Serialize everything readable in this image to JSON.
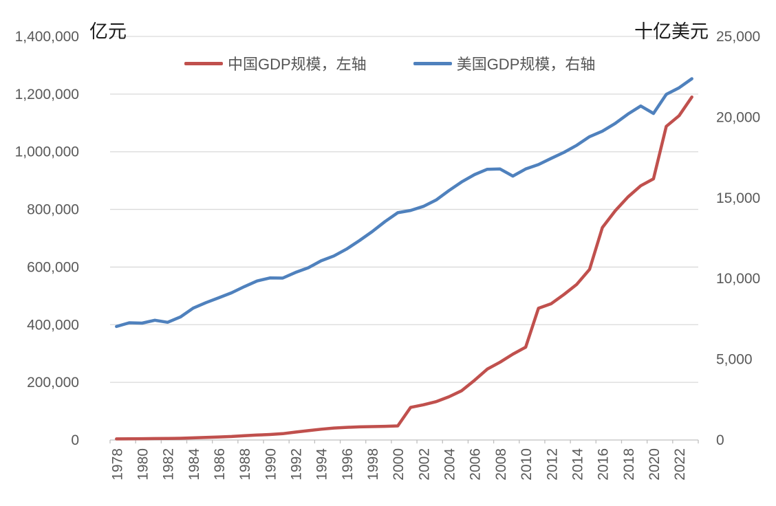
{
  "chart_data": {
    "type": "line",
    "title": "",
    "x": [
      1978,
      1979,
      1980,
      1981,
      1982,
      1983,
      1984,
      1985,
      1986,
      1987,
      1988,
      1989,
      1990,
      1991,
      1992,
      1993,
      1994,
      1995,
      1996,
      1997,
      1998,
      1999,
      2000,
      2001,
      2002,
      2003,
      2004,
      2005,
      2006,
      2007,
      2008,
      2009,
      2010,
      2011,
      2012,
      2013,
      2014,
      2015,
      2016,
      2017,
      2018,
      2019,
      2020,
      2021,
      2022,
      2023
    ],
    "series": [
      {
        "name": "中国GDP规模，左轴",
        "axis": "left",
        "color": "#C0504D",
        "values": [
          3700,
          4100,
          4600,
          4900,
          5400,
          6000,
          7300,
          9100,
          10400,
          12100,
          15100,
          17100,
          19000,
          22000,
          27500,
          32500,
          37500,
          41500,
          44000,
          45500,
          46500,
          47500,
          49000,
          113000,
          122000,
          133000,
          150000,
          171000,
          207000,
          246000,
          270000,
          298000,
          322000,
          457000,
          473000,
          505000,
          540000,
          592000,
          737000,
          795000,
          843000,
          882000,
          906000,
          1088000,
          1125000,
          1190000
        ]
      },
      {
        "name": "美国GDP规模，右轴",
        "axis": "right",
        "color": "#4F81BD",
        "values": [
          7030,
          7260,
          7240,
          7420,
          7290,
          7620,
          8170,
          8510,
          8810,
          9120,
          9500,
          9850,
          10040,
          10030,
          10380,
          10670,
          11100,
          11400,
          11830,
          12350,
          12910,
          13530,
          14080,
          14220,
          14470,
          14870,
          15450,
          15990,
          16440,
          16770,
          16790,
          16350,
          16790,
          17060,
          17450,
          17820,
          18260,
          18790,
          19130,
          19610,
          20190,
          20690,
          20230,
          21410,
          21820,
          22380
        ]
      }
    ],
    "left_axis": {
      "title": "亿元",
      "min": 0,
      "max": 1400000,
      "tick_step": 200000,
      "tick_labels": [
        "0",
        "200,000",
        "400,000",
        "600,000",
        "800,000",
        "1,000,000",
        "1,200,000",
        "1,400,000"
      ]
    },
    "right_axis": {
      "title": "十亿美元",
      "min": 0,
      "max": 25000,
      "tick_step": 5000,
      "tick_labels": [
        "0",
        "5,000",
        "10,000",
        "15,000",
        "20,000",
        "25,000"
      ]
    },
    "x_axis": {
      "label_years": [
        1978,
        1980,
        1982,
        1984,
        1986,
        1988,
        1990,
        1992,
        1994,
        1996,
        1998,
        2000,
        2002,
        2004,
        2006,
        2008,
        2010,
        2012,
        2014,
        2016,
        2018,
        2020,
        2022
      ],
      "label_interval": 2
    },
    "legend": {
      "position": "top"
    },
    "grid": "horizontal",
    "colors": {
      "gridline": "#D9D9D9",
      "axis_line": "#BFBFBF",
      "tick_text": "#595959"
    }
  }
}
